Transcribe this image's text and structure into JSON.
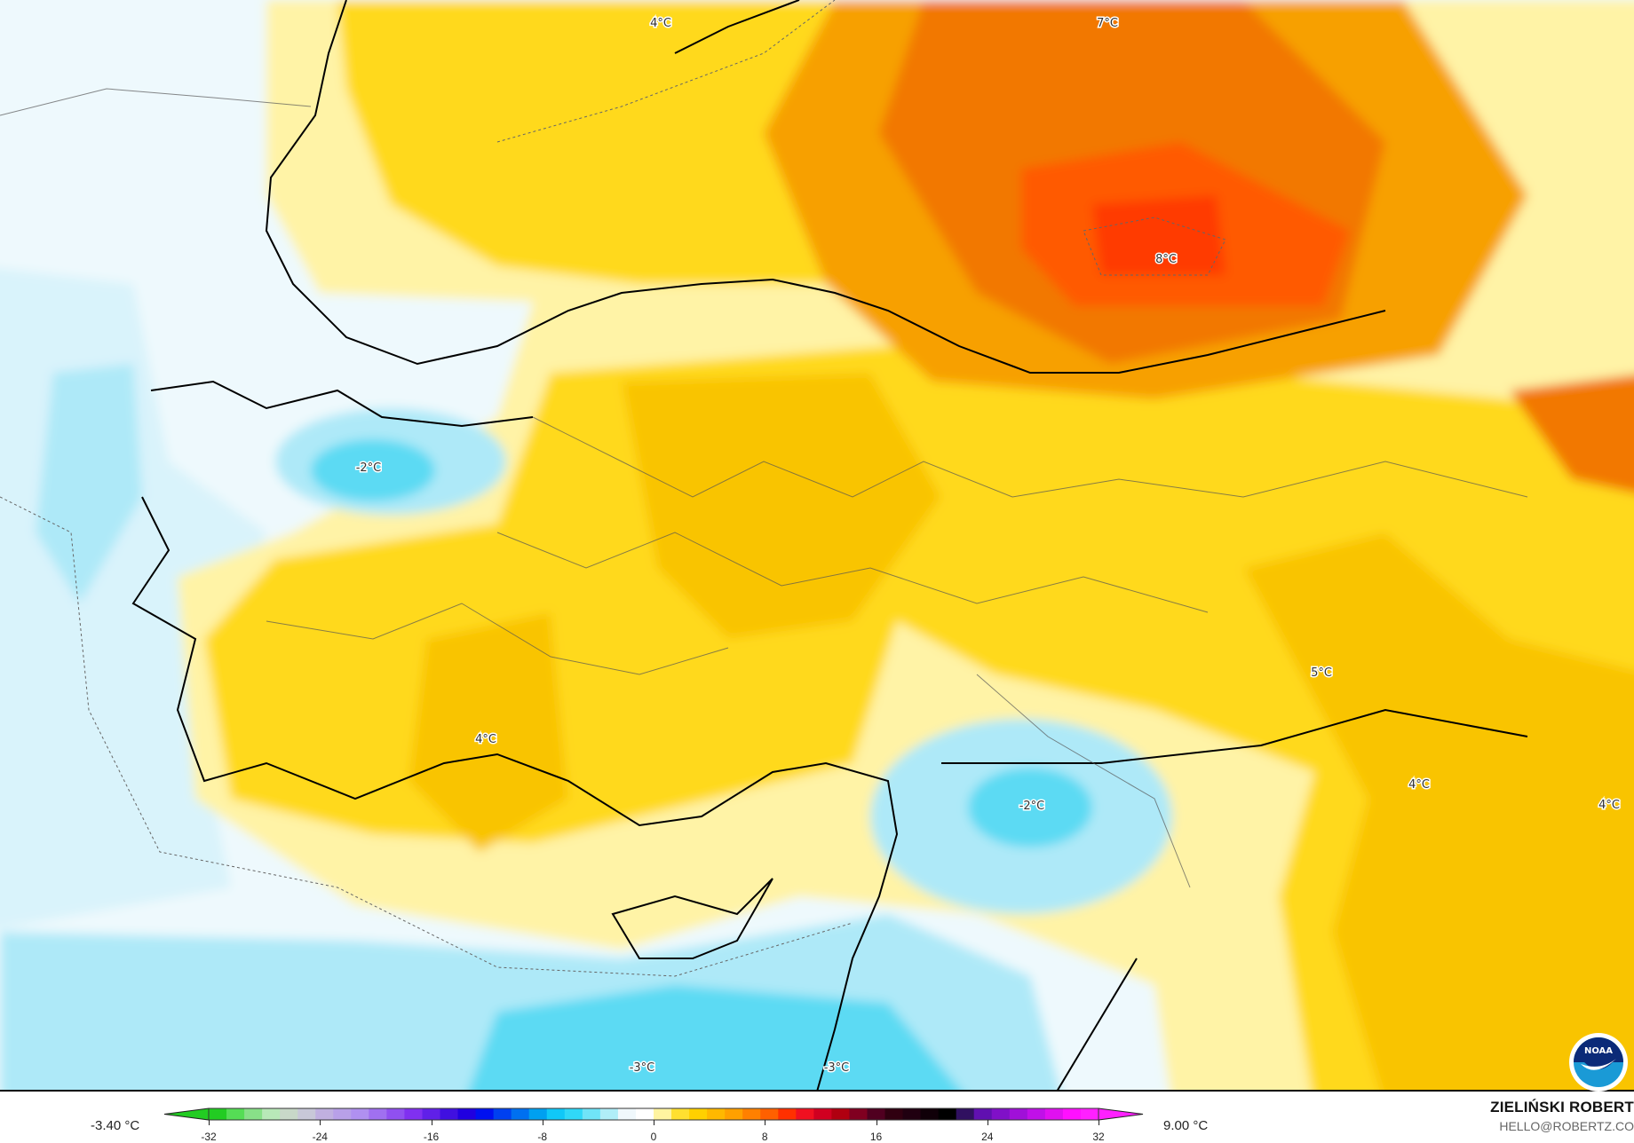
{
  "map": {
    "variable_unit": "°C",
    "contour_labels": [
      {
        "text": "4°C",
        "region": "north-black-sea-coast"
      },
      {
        "text": "7°C",
        "region": "southern-russia-north"
      },
      {
        "text": "8°C",
        "region": "southern-russia"
      },
      {
        "text": "-2°C",
        "region": "marmara"
      },
      {
        "text": "5°C",
        "region": "eastern-anatolia"
      },
      {
        "text": "4°C",
        "region": "southwest-anatolia"
      },
      {
        "text": "4°C",
        "region": "iraq-north"
      },
      {
        "text": "4°C",
        "region": "iran-west"
      },
      {
        "text": "-2°C",
        "region": "syria"
      },
      {
        "text": "-3°C",
        "region": "eastern-mediterranean"
      },
      {
        "text": "-3°C",
        "region": "lebanon"
      }
    ],
    "colors": {
      "ocean_cold": "#5cdaf3",
      "cold_light": "#aee9f8",
      "near_zero": "#eef9fd",
      "pale_warm": "#fff3a6",
      "yellow": "#ffd91a",
      "gold": "#f9c400",
      "orange": "#f7a000",
      "dark_orange": "#f27800",
      "red_orange": "#ff4a00"
    }
  },
  "legend": {
    "min_label": "-3.40 °C",
    "max_label": "9.00 °C",
    "ticks": [
      "-32",
      "-24",
      "-16",
      "-8",
      "0",
      "8",
      "16",
      "24",
      "32"
    ],
    "range": [
      -32,
      32
    ],
    "colors": [
      "#22cc22",
      "#55dd55",
      "#88e088",
      "#b8e8b8",
      "#c8d8c8",
      "#c8c8d8",
      "#c0b0e0",
      "#b8a0e8",
      "#b090f0",
      "#a070f0",
      "#9050f0",
      "#8030f0",
      "#6020e8",
      "#4010e0",
      "#2000e0",
      "#0010f0",
      "#0040f0",
      "#0070f0",
      "#00a0f0",
      "#10c8f8",
      "#30d8f8",
      "#70e4f8",
      "#b0eef8",
      "#f0f8fc",
      "#ffffff",
      "#fff4a0",
      "#ffe030",
      "#ffd000",
      "#ffb800",
      "#ffa000",
      "#ff8000",
      "#ff6000",
      "#ff3000",
      "#f01020",
      "#d00020",
      "#b00010",
      "#800020",
      "#500020",
      "#300010",
      "#200010",
      "#100008",
      "#000000",
      "#301060",
      "#6010b0",
      "#8010c8",
      "#a010d8",
      "#c010e8",
      "#e010f0",
      "#ff10ff",
      "#ff20ff"
    ]
  },
  "credit": {
    "name": "ZIELIŃSKI ROBERT",
    "contact": "HELLO@ROBERTZ.CO",
    "logo_text": "NOAA"
  }
}
